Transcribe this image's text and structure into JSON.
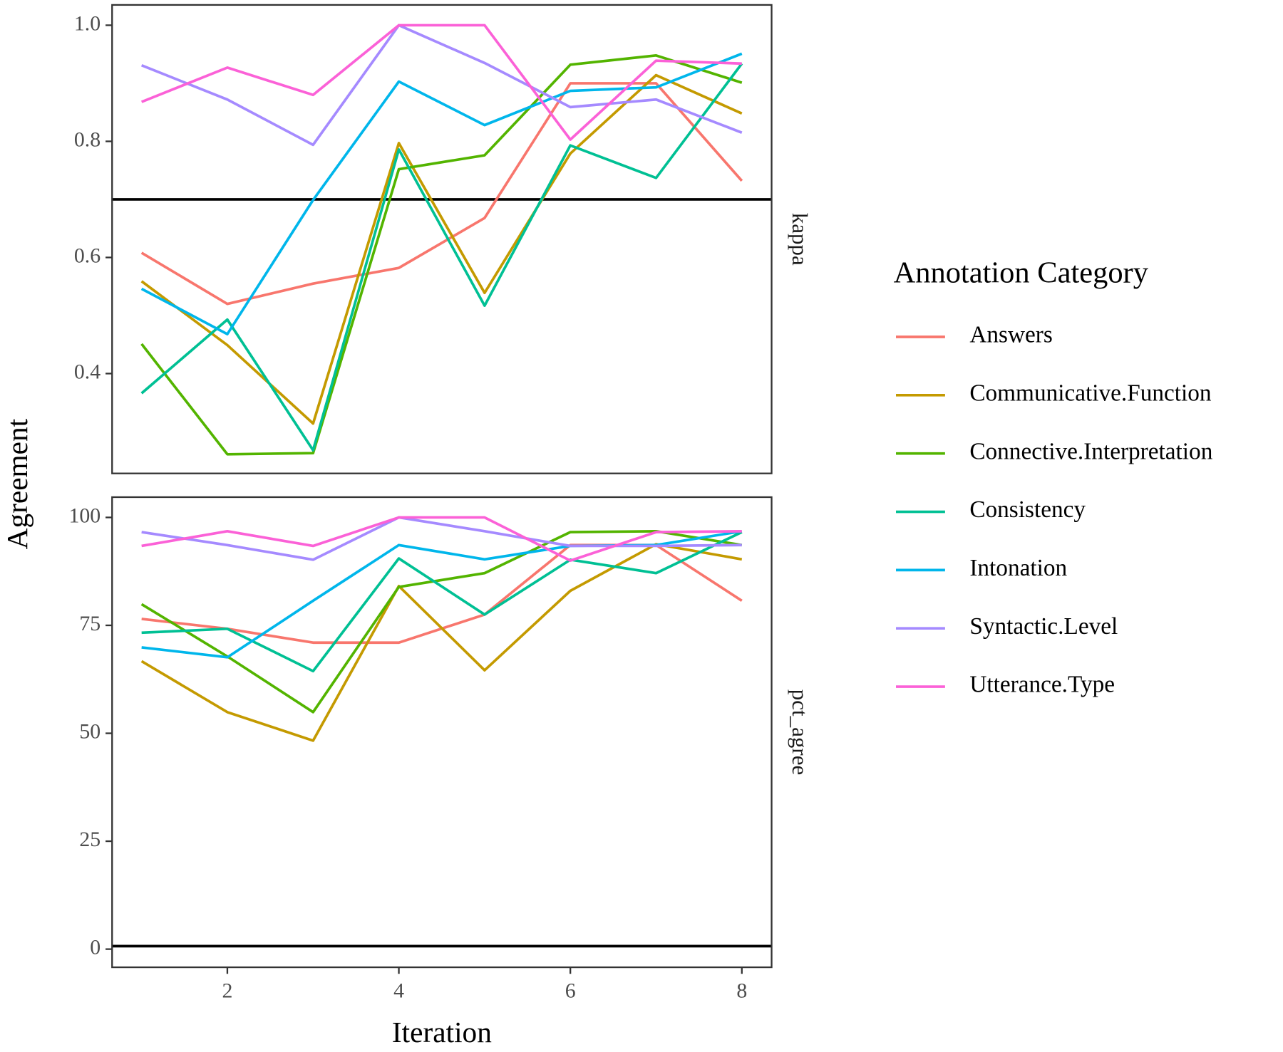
{
  "chart_data": [
    {
      "type": "line",
      "facet": "kappa",
      "y_label": "Agreement",
      "legend_title": "Annotation Category",
      "x": [
        1,
        2,
        3,
        4,
        5,
        6,
        7,
        8
      ],
      "xlim": [
        0.656,
        8.347
      ],
      "ylim": [
        0.228,
        1.035
      ],
      "yticks": [
        0.4,
        0.6,
        0.8,
        {
          "value": 1,
          "label": "1.0"
        }
      ],
      "hline": 0.7,
      "grid": false,
      "series": [
        {
          "name": "Answers",
          "color": "#F8766D",
          "values": [
            0.608,
            0.52,
            0.555,
            0.582,
            0.668,
            0.9,
            0.9,
            0.732
          ]
        },
        {
          "name": "Communicative.Function",
          "color": "#C49A00",
          "values": [
            0.559,
            0.449,
            0.314,
            0.797,
            0.539,
            0.779,
            0.914,
            0.848
          ]
        },
        {
          "name": "Connective.Interpretation",
          "color": "#53B400",
          "values": [
            0.451,
            0.261,
            0.263,
            0.752,
            0.776,
            0.932,
            0.948,
            0.901
          ]
        },
        {
          "name": "Consistency",
          "color": "#00C094",
          "values": [
            0.366,
            0.493,
            0.268,
            0.786,
            0.517,
            0.793,
            0.737,
            0.934
          ]
        },
        {
          "name": "Intonation",
          "color": "#00B6EB",
          "values": [
            0.546,
            0.468,
            0.699,
            0.903,
            0.828,
            0.887,
            0.893,
            0.951
          ]
        },
        {
          "name": "Syntactic.Level",
          "color": "#A58AFF",
          "values": [
            0.931,
            0.872,
            0.794,
            1.0,
            0.935,
            0.859,
            0.872,
            0.815
          ]
        },
        {
          "name": "Utterance.Type",
          "color": "#FB61D7",
          "values": [
            0.868,
            0.927,
            0.88,
            1.0,
            1.0,
            0.803,
            0.939,
            0.934
          ]
        }
      ]
    },
    {
      "type": "line",
      "facet": "pct_agree",
      "x_label": "Iteration",
      "x": [
        1,
        2,
        3,
        4,
        5,
        6,
        7,
        8
      ],
      "xlim": [
        0.656,
        8.347
      ],
      "xticks": [
        2,
        4,
        6,
        8
      ],
      "ylim": [
        -4.2,
        104.7
      ],
      "yticks": [
        0,
        25,
        50,
        75,
        100
      ],
      "hline": 0.7,
      "grid": false,
      "series": [
        {
          "color": "#F8766D",
          "values": [
            76.5,
            74.2,
            71.0,
            71.0,
            77.5,
            93.6,
            93.6,
            80.7
          ]
        },
        {
          "color": "#C49A00",
          "values": [
            66.7,
            54.9,
            48.3,
            84.1,
            64.6,
            83.0,
            93.8,
            90.3
          ]
        },
        {
          "color": "#53B400",
          "values": [
            79.9,
            67.8,
            54.9,
            83.9,
            87.1,
            96.6,
            96.8,
            93.6
          ]
        },
        {
          "color": "#00C094",
          "values": [
            73.3,
            74.2,
            64.4,
            90.5,
            77.5,
            90.2,
            87.1,
            96.6
          ]
        },
        {
          "color": "#00B6EB",
          "values": [
            69.9,
            67.6,
            80.7,
            93.6,
            90.3,
            93.4,
            93.6,
            96.8
          ]
        },
        {
          "color": "#A58AFF",
          "values": [
            96.6,
            93.6,
            90.2,
            100,
            96.8,
            93.4,
            93.4,
            93.6
          ]
        },
        {
          "color": "#FB61D7",
          "values": [
            93.4,
            96.8,
            93.4,
            100,
            100,
            90.0,
            96.6,
            96.8
          ]
        }
      ]
    }
  ]
}
